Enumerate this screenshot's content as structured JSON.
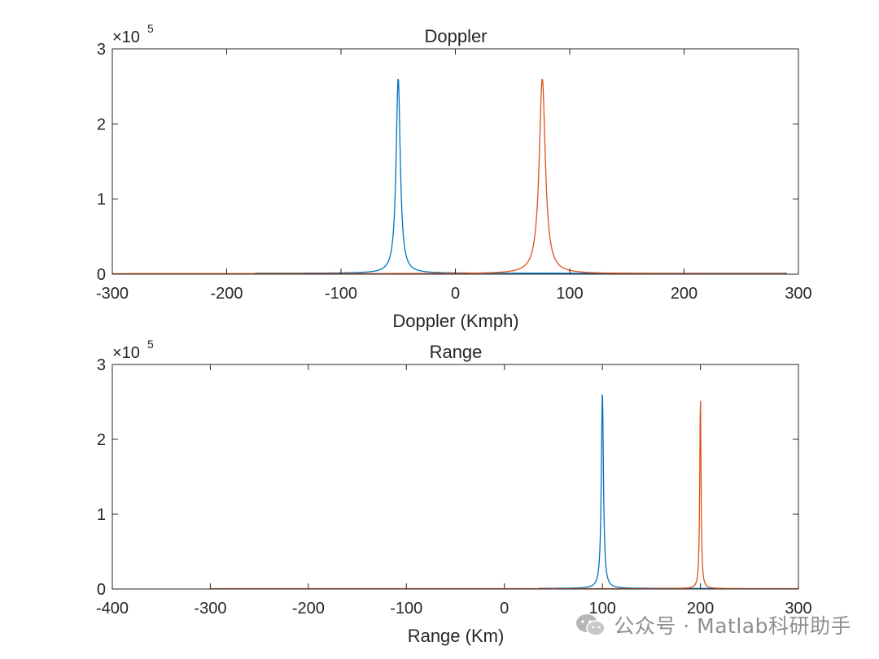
{
  "chart_data": [
    {
      "type": "line",
      "title": "Doppler",
      "xlabel": "Doppler (Kmph)",
      "ylabel": "",
      "xlim": [
        -300,
        300
      ],
      "ylim": [
        0,
        300000
      ],
      "x_ticks": [
        -300,
        -200,
        -100,
        0,
        100,
        200,
        300
      ],
      "x_tick_labels": [
        "-300",
        "-200",
        "-100",
        "0",
        "100",
        "200",
        "300"
      ],
      "y_ticks": [
        0,
        100000,
        200000,
        300000
      ],
      "y_tick_labels": [
        "0",
        "1",
        "2",
        "3"
      ],
      "y_exponent_base": "×10",
      "y_exponent": "5",
      "grid": false,
      "series": [
        {
          "color": "#0072BD",
          "x_range": [
            -175,
            290
          ],
          "peak_x": -50,
          "peak_y": 260000,
          "width": 2.2,
          "floor": 1200
        },
        {
          "color": "#D95319",
          "x_range": [
            -300,
            290
          ],
          "peak_x": 76,
          "peak_y": 260000,
          "width": 3.2,
          "floor": 700
        }
      ]
    },
    {
      "type": "line",
      "title": "Range",
      "xlabel": "Range (Km)",
      "ylabel": "",
      "xlim": [
        -400,
        300
      ],
      "ylim": [
        0,
        300000
      ],
      "x_ticks": [
        -400,
        -300,
        -200,
        -100,
        0,
        100,
        200,
        300
      ],
      "x_tick_labels": [
        "-400",
        "-300",
        "-200",
        "-100",
        "0",
        "100",
        "200",
        "300"
      ],
      "y_ticks": [
        0,
        100000,
        200000,
        300000
      ],
      "y_tick_labels": [
        "0",
        "1",
        "2",
        "3"
      ],
      "y_exponent_base": "×10",
      "y_exponent": "5",
      "grid": false,
      "series": [
        {
          "color": "#0072BD",
          "x_range": [
            35,
            225
          ],
          "peak_x": 100,
          "peak_y": 260000,
          "width": 1.3,
          "floor": 800
        },
        {
          "color": "#D95319",
          "x_range": [
            -300,
            300
          ],
          "peak_x": 200,
          "peak_y": 259000,
          "width": 0.8,
          "floor": 500
        }
      ]
    }
  ],
  "watermark": {
    "text": "公众号 · Matlab科研助手"
  },
  "colors": {
    "axis": "#262626",
    "series1": "#0072BD",
    "series2": "#D95319"
  }
}
